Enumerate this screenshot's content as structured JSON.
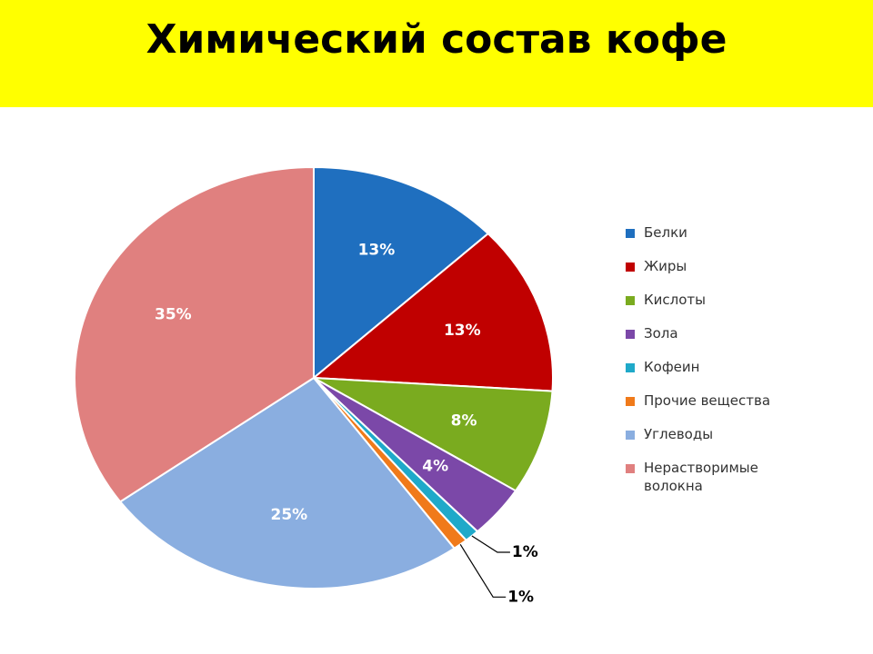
{
  "chart_data": {
    "type": "pie",
    "title": "Химический состав кофе",
    "categories": [
      "Белки",
      "Жиры",
      "Кислоты",
      "Зола",
      "Кофеин",
      "Прочие вещества",
      "Углеводы",
      "Нерастворимые волокна"
    ],
    "values": [
      13,
      13,
      8,
      4,
      1,
      1,
      25,
      35
    ],
    "value_labels": [
      "13%",
      "13%",
      "8%",
      "4%",
      "1%",
      "1%",
      "25%",
      "35%"
    ],
    "colors": [
      "#1f6fbf",
      "#c00000",
      "#7aab1f",
      "#7b48a8",
      "#1fa9c9",
      "#f07a1a",
      "#8aaee0",
      "#e0807f"
    ],
    "legend": "right"
  }
}
